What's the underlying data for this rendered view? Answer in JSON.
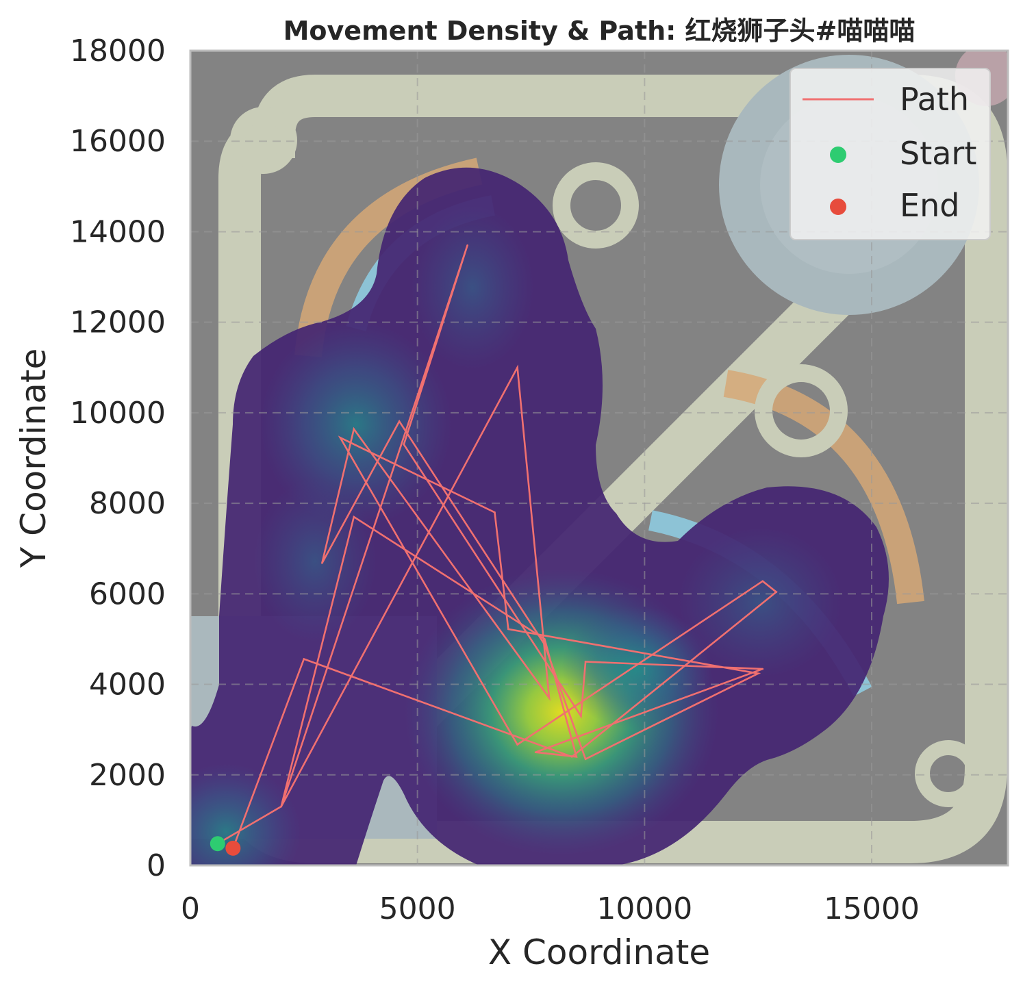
{
  "chart_data": {
    "type": "line",
    "title": "Movement Density & Path: 红烧狮子头#喵喵喵",
    "xlabel": "X Coordinate",
    "ylabel": "Y Coordinate",
    "xlim": [
      0,
      18000
    ],
    "ylim": [
      0,
      18000
    ],
    "xticks": [
      "0",
      "5000",
      "10000",
      "15000"
    ],
    "xtick_values": [
      0,
      5000,
      10000,
      15000
    ],
    "yticks": [
      "0",
      "2000",
      "4000",
      "6000",
      "8000",
      "10000",
      "12000",
      "14000",
      "16000",
      "18000"
    ],
    "ytick_values": [
      0,
      2000,
      4000,
      6000,
      8000,
      10000,
      12000,
      14000,
      16000,
      18000
    ],
    "grid": true,
    "legend_position": "top-right",
    "background": "map image overlaid with movement density heatmap (viridis)",
    "series": [
      {
        "name": "Path",
        "color": "#f07070",
        "x": [
          940,
          2500,
          8400,
          12900,
          12600,
          7200,
          3300,
          6700,
          7000,
          12500,
          8700,
          7800,
          4600,
          2900,
          3600,
          7900,
          7200,
          2000,
          6100,
          4700,
          8600,
          8700,
          12600,
          7600,
          8500,
          7800,
          3600,
          2000,
          600
        ],
        "y": [
          380,
          4560,
          2400,
          6040,
          6280,
          2670,
          9450,
          7800,
          5220,
          4240,
          2350,
          4880,
          9810,
          6680,
          9640,
          3700,
          11000,
          1300,
          13700,
          9300,
          3300,
          4500,
          4340,
          2500,
          2400,
          5000,
          7700,
          1300,
          480
        ]
      }
    ],
    "markers": [
      {
        "name": "Start",
        "color": "#2ecc71",
        "x": 600,
        "y": 480
      },
      {
        "name": "End",
        "color": "#e74c3c",
        "x": 940,
        "y": 380
      }
    ],
    "density_peaks": [
      {
        "x": 8200,
        "y": 3300,
        "level": 1.0
      },
      {
        "x": 800,
        "y": 700,
        "level": 0.55
      },
      {
        "x": 3800,
        "y": 9700,
        "level": 0.5
      },
      {
        "x": 12700,
        "y": 5000,
        "level": 0.4
      },
      {
        "x": 6200,
        "y": 12800,
        "level": 0.3
      },
      {
        "x": 9600,
        "y": 4300,
        "level": 0.45
      }
    ],
    "colormap": "viridis"
  }
}
